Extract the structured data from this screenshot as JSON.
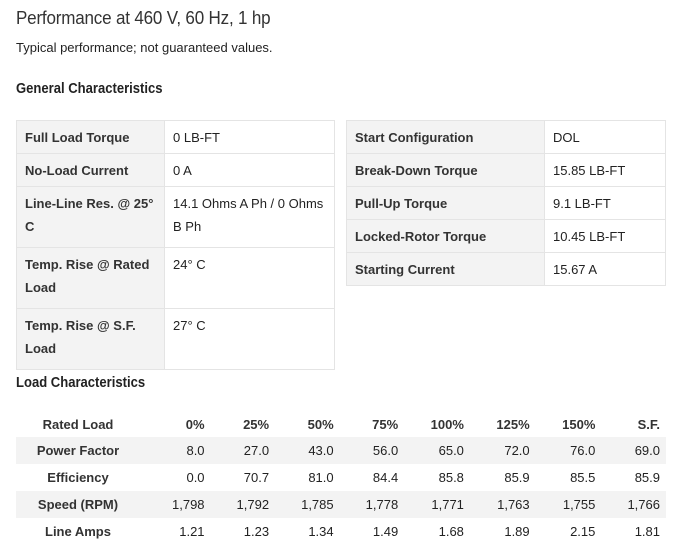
{
  "title": "Performance at 460 V, 60 Hz, 1 hp",
  "subtitle": "Typical performance; not guaranteed values.",
  "general": {
    "heading": "General Characteristics",
    "left": [
      {
        "label": "Full Load Torque",
        "value": "0 LB-FT"
      },
      {
        "label": "No-Load Current",
        "value": "0 A"
      },
      {
        "label": "Line-Line Res. @ 25° C",
        "value": "14.1 Ohms A Ph / 0 Ohms B Ph"
      },
      {
        "label": "Temp. Rise @ Rated Load",
        "value": "24° C"
      },
      {
        "label": "Temp. Rise @ S.F. Load",
        "value": "27° C"
      }
    ],
    "right": [
      {
        "label": "Start Configuration",
        "value": "DOL"
      },
      {
        "label": "Break-Down Torque",
        "value": "15.85 LB-FT"
      },
      {
        "label": "Pull-Up Torque",
        "value": "9.1 LB-FT"
      },
      {
        "label": "Locked-Rotor Torque",
        "value": "10.45 LB-FT"
      },
      {
        "label": "Starting Current",
        "value": "15.67 A"
      }
    ]
  },
  "load": {
    "heading": "Load Characteristics",
    "columns": [
      "Rated Load",
      "0%",
      "25%",
      "50%",
      "75%",
      "100%",
      "125%",
      "150%",
      "S.F."
    ],
    "rows": [
      {
        "label": "Power Factor",
        "values": [
          "8.0",
          "27.0",
          "43.0",
          "56.0",
          "65.0",
          "72.0",
          "76.0",
          "69.0"
        ]
      },
      {
        "label": "Efficiency",
        "values": [
          "0.0",
          "70.7",
          "81.0",
          "84.4",
          "85.8",
          "85.9",
          "85.5",
          "85.9"
        ]
      },
      {
        "label": "Speed (RPM)",
        "values": [
          "1,798",
          "1,792",
          "1,785",
          "1,778",
          "1,771",
          "1,763",
          "1,755",
          "1,766"
        ]
      },
      {
        "label": "Line Amps",
        "values": [
          "1.21",
          "1.23",
          "1.34",
          "1.49",
          "1.68",
          "1.89",
          "2.15",
          "1.81"
        ]
      }
    ]
  }
}
